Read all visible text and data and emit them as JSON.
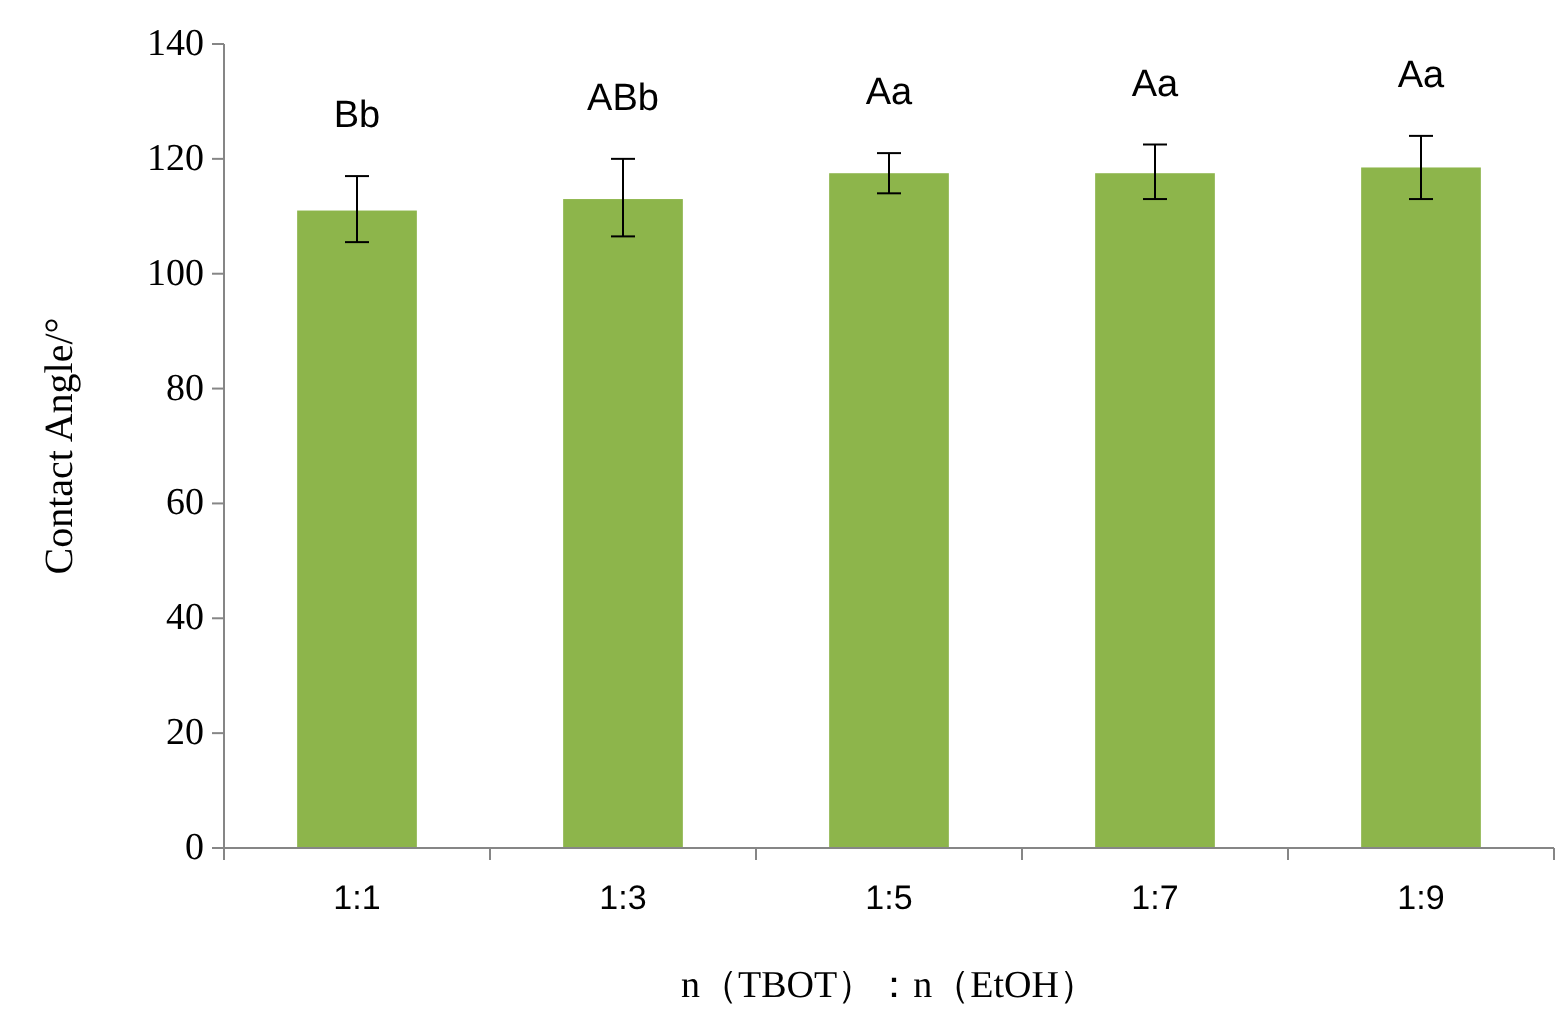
{
  "chart_data": {
    "type": "bar",
    "xlabel": "n（TBOT）：n（EtOH）",
    "ylabel": "Contact Angle/°",
    "categories": [
      "1:1",
      "1:3",
      "1:5",
      "1:7",
      "1:9"
    ],
    "values": [
      111,
      113,
      117.5,
      117.5,
      118.5
    ],
    "errors": [
      [
        105.5,
        117
      ],
      [
        106.5,
        120
      ],
      [
        114,
        121
      ],
      [
        113,
        122.5
      ],
      [
        113,
        124
      ]
    ],
    "color": "#8db54b",
    "ylim": [
      0,
      140
    ],
    "yticks": [
      0,
      20,
      40,
      60,
      80,
      100,
      120,
      140
    ],
    "grid": false,
    "annotations": [
      "Bb",
      "ABb",
      "Aa",
      "Aa",
      "Aa"
    ]
  }
}
